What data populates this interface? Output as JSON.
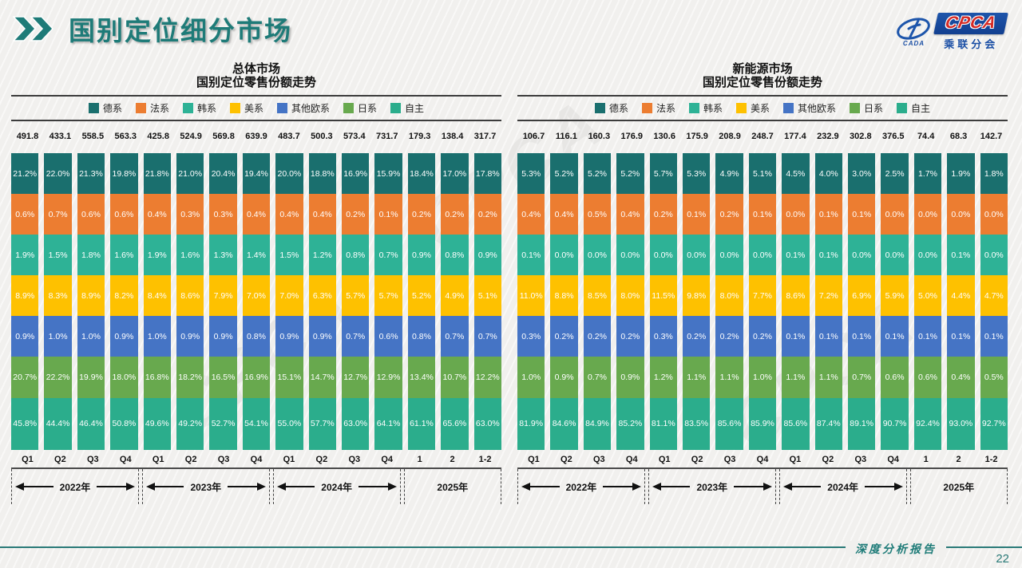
{
  "page": {
    "title": "国别定位细分市场",
    "footer_label": "深度分析报告",
    "page_number": "22",
    "watermark": "CPCA",
    "accent_color": "#1E7B78"
  },
  "logo": {
    "cpca": "CPCA",
    "sub": "乘联分会",
    "emblem_sub": "CADA"
  },
  "chart_data": [
    {
      "type": "bar",
      "stacked": true,
      "title_line1": "总体市场",
      "title_line2": "国别定位零售份额走势",
      "legend_position": "top",
      "categories": [
        "Q1",
        "Q2",
        "Q3",
        "Q4",
        "Q1",
        "Q2",
        "Q3",
        "Q4",
        "Q1",
        "Q2",
        "Q3",
        "Q4",
        "1",
        "2",
        "1-2"
      ],
      "year_groups": [
        {
          "label": "2022年",
          "span": 4,
          "arrows": true
        },
        {
          "label": "2023年",
          "span": 4,
          "arrows": true
        },
        {
          "label": "2024年",
          "span": 4,
          "arrows": true
        },
        {
          "label": "2025年",
          "span": 3,
          "arrows": false
        }
      ],
      "totals": [
        491.8,
        433.1,
        558.5,
        563.3,
        425.8,
        524.9,
        569.8,
        639.9,
        483.7,
        500.3,
        573.4,
        731.7,
        179.3,
        138.4,
        317.7
      ],
      "unit": "%",
      "series": [
        {
          "name": "德系",
          "color": "#1A6F6E",
          "values": [
            21.2,
            22.0,
            21.3,
            19.8,
            21.8,
            21.0,
            20.4,
            19.4,
            20.0,
            18.8,
            16.9,
            15.9,
            18.4,
            17.0,
            17.8
          ]
        },
        {
          "name": "法系",
          "color": "#EC7D31",
          "values": [
            0.6,
            0.7,
            0.6,
            0.6,
            0.4,
            0.3,
            0.3,
            0.4,
            0.4,
            0.4,
            0.2,
            0.1,
            0.2,
            0.2,
            0.2
          ]
        },
        {
          "name": "韩系",
          "color": "#2EB296",
          "values": [
            1.9,
            1.5,
            1.8,
            1.6,
            1.9,
            1.6,
            1.3,
            1.4,
            1.5,
            1.2,
            0.8,
            0.7,
            0.9,
            0.8,
            0.9
          ]
        },
        {
          "name": "美系",
          "color": "#FEC100",
          "values": [
            8.9,
            8.3,
            8.9,
            8.2,
            8.4,
            8.6,
            7.9,
            7.0,
            7.0,
            6.3,
            5.7,
            5.7,
            5.2,
            4.9,
            5.1
          ]
        },
        {
          "name": "其他欧系",
          "color": "#4574C5",
          "values": [
            0.9,
            1.0,
            1.0,
            0.9,
            1.0,
            0.9,
            0.9,
            0.8,
            0.9,
            0.9,
            0.7,
            0.6,
            0.8,
            0.7,
            0.7
          ]
        },
        {
          "name": "日系",
          "color": "#68A94E",
          "values": [
            20.7,
            22.2,
            19.9,
            18.0,
            16.8,
            18.2,
            16.5,
            16.9,
            15.1,
            14.7,
            12.7,
            12.9,
            13.4,
            10.7,
            12.2
          ]
        },
        {
          "name": "自主",
          "color": "#2BAD8C",
          "values": [
            45.8,
            44.4,
            46.4,
            50.8,
            49.6,
            49.2,
            52.7,
            54.1,
            55.0,
            57.7,
            63.0,
            64.1,
            61.1,
            65.6,
            63.0
          ]
        }
      ]
    },
    {
      "type": "bar",
      "stacked": true,
      "title_line1": "新能源市场",
      "title_line2": "国别定位零售份额走势",
      "legend_position": "top",
      "categories": [
        "Q1",
        "Q2",
        "Q3",
        "Q4",
        "Q1",
        "Q2",
        "Q3",
        "Q4",
        "Q1",
        "Q2",
        "Q3",
        "Q4",
        "1",
        "2",
        "1-2"
      ],
      "year_groups": [
        {
          "label": "2022年",
          "span": 4,
          "arrows": true
        },
        {
          "label": "2023年",
          "span": 4,
          "arrows": true
        },
        {
          "label": "2024年",
          "span": 4,
          "arrows": true
        },
        {
          "label": "2025年",
          "span": 3,
          "arrows": false
        }
      ],
      "totals": [
        106.7,
        116.1,
        160.3,
        176.9,
        130.6,
        175.9,
        208.9,
        248.7,
        177.4,
        232.9,
        302.8,
        376.5,
        74.4,
        68.3,
        142.7
      ],
      "unit": "%",
      "series": [
        {
          "name": "德系",
          "color": "#1A6F6E",
          "values": [
            5.3,
            5.2,
            5.2,
            5.2,
            5.7,
            5.3,
            4.9,
            5.1,
            4.5,
            4.0,
            3.0,
            2.5,
            1.7,
            1.9,
            1.8
          ]
        },
        {
          "name": "法系",
          "color": "#EC7D31",
          "values": [
            0.4,
            0.4,
            0.5,
            0.4,
            0.2,
            0.1,
            0.2,
            0.1,
            0.0,
            0.1,
            0.1,
            0.0,
            0.0,
            0.0,
            0.0
          ]
        },
        {
          "name": "韩系",
          "color": "#2EB296",
          "values": [
            0.1,
            0.0,
            0.0,
            0.0,
            0.0,
            0.0,
            0.0,
            0.0,
            0.1,
            0.1,
            0.0,
            0.0,
            0.0,
            0.1,
            0.0
          ]
        },
        {
          "name": "美系",
          "color": "#FEC100",
          "values": [
            11.0,
            8.8,
            8.5,
            8.0,
            11.5,
            9.8,
            8.0,
            7.7,
            8.6,
            7.2,
            6.9,
            5.9,
            5.0,
            4.4,
            4.7
          ]
        },
        {
          "name": "其他欧系",
          "color": "#4574C5",
          "values": [
            0.3,
            0.2,
            0.2,
            0.2,
            0.3,
            0.2,
            0.2,
            0.2,
            0.1,
            0.1,
            0.1,
            0.1,
            0.1,
            0.1,
            0.1
          ]
        },
        {
          "name": "日系",
          "color": "#68A94E",
          "values": [
            1.0,
            0.9,
            0.7,
            0.9,
            1.2,
            1.1,
            1.1,
            1.0,
            1.1,
            1.1,
            0.7,
            0.6,
            0.6,
            0.4,
            0.5
          ]
        },
        {
          "name": "自主",
          "color": "#2BAD8C",
          "values": [
            81.9,
            84.6,
            84.9,
            85.2,
            81.1,
            83.5,
            85.6,
            85.9,
            85.6,
            87.4,
            89.1,
            90.7,
            92.4,
            93.0,
            92.7
          ]
        }
      ]
    }
  ]
}
